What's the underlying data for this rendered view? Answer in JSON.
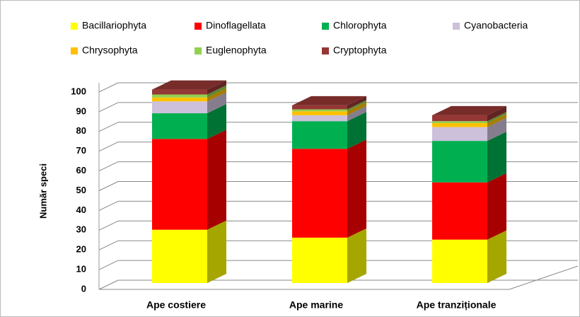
{
  "chart_data": {
    "type": "bar3d_stacked",
    "y_label": "Număr speci",
    "categories": [
      "Ape costiere",
      "Ape marine",
      "Ape tranziționale"
    ],
    "series": [
      {
        "name": "Bacillariophyta",
        "color": "#ffff00",
        "values": [
          27,
          23,
          22
        ]
      },
      {
        "name": "Dinoflagellata",
        "color": "#ff0000",
        "values": [
          46,
          45,
          29
        ]
      },
      {
        "name": "Chlorophyta",
        "color": "#00b050",
        "values": [
          13,
          14,
          21
        ]
      },
      {
        "name": "Cyanobacteria",
        "color": "#ccc0da",
        "values": [
          6,
          3,
          7
        ]
      },
      {
        "name": "Chrysophyta",
        "color": "#ffc000",
        "values": [
          2,
          2,
          2
        ]
      },
      {
        "name": "Euglenophyta",
        "color": "#92d050",
        "values": [
          1.5,
          1,
          1
        ]
      },
      {
        "name": "Cryptophyta",
        "color": "#953735",
        "values": [
          2.5,
          2,
          3
        ]
      }
    ],
    "ylim": [
      0,
      100
    ],
    "yticks": [
      0,
      10,
      20,
      30,
      40,
      50,
      60,
      70,
      80,
      90,
      100
    ],
    "grid": true
  }
}
